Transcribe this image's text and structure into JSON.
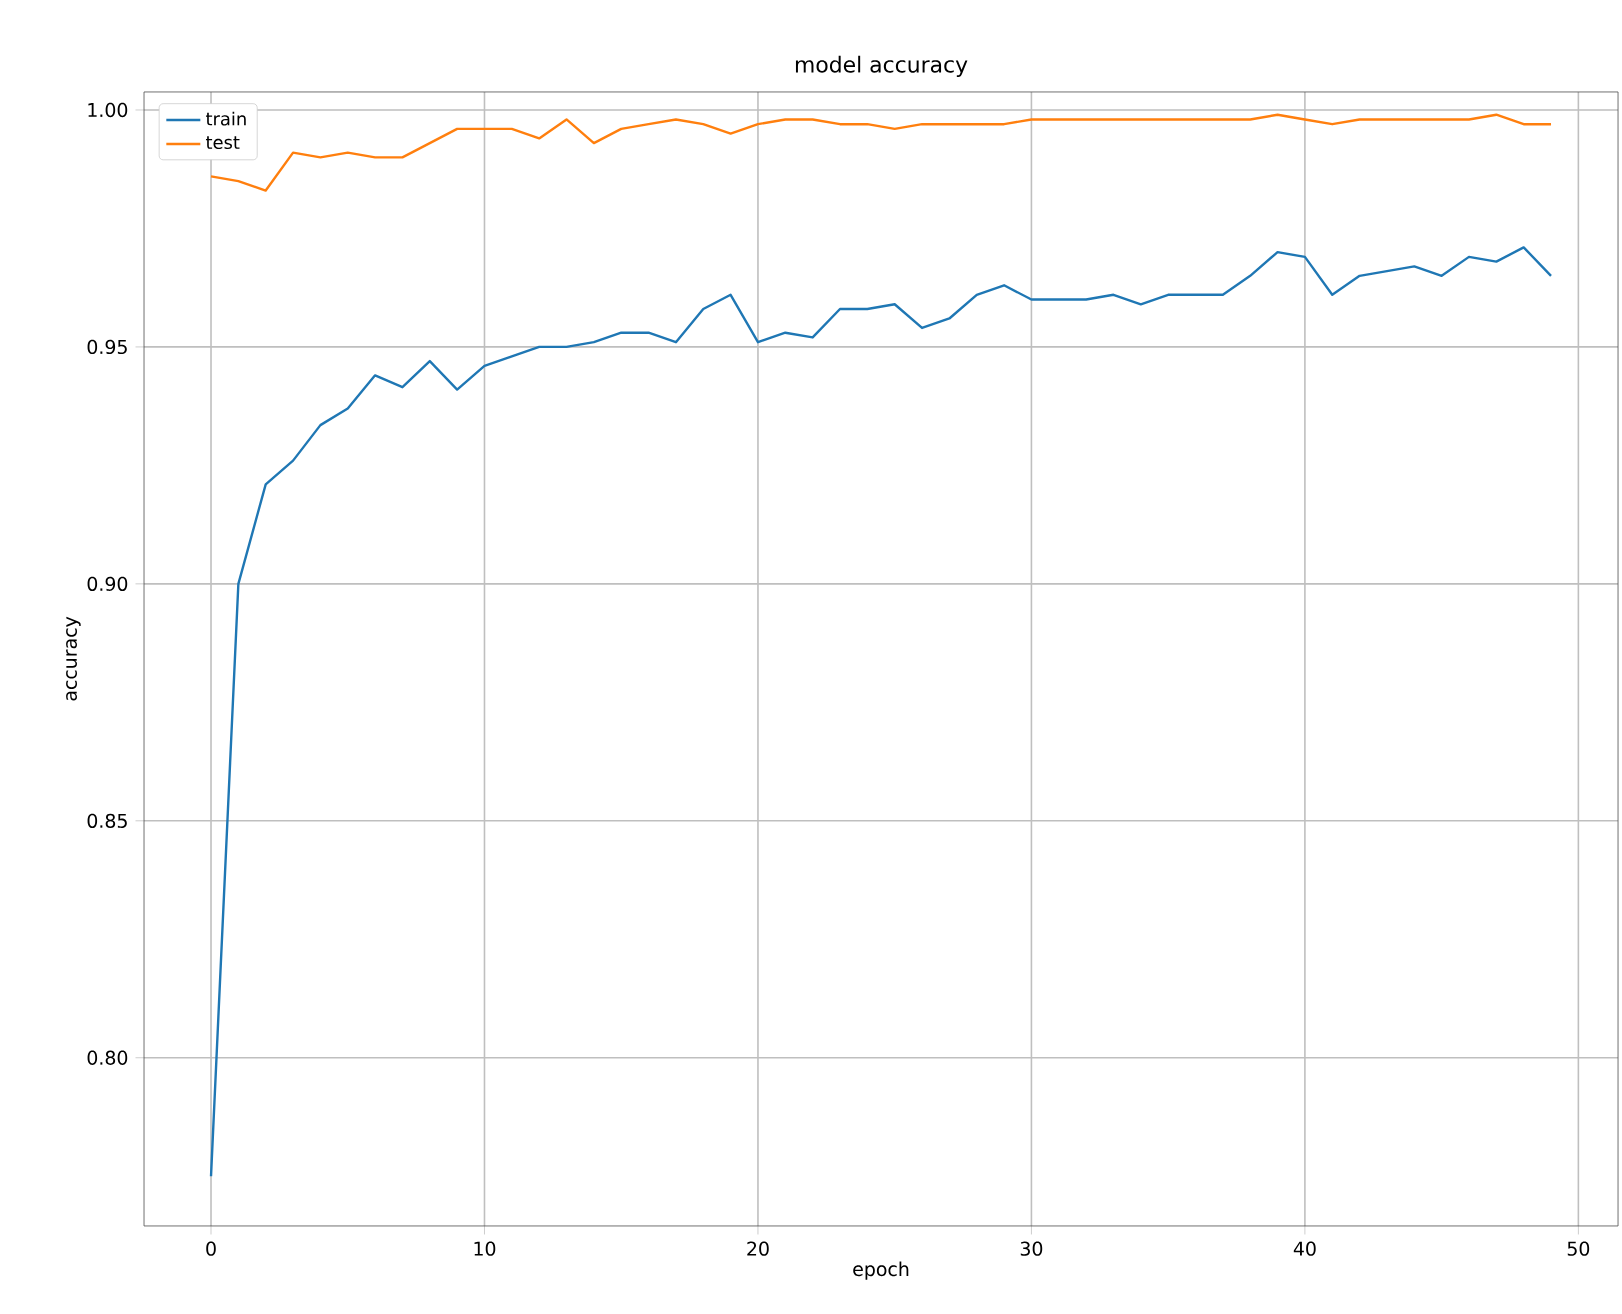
{
  "chart_data": {
    "type": "line",
    "title": "model accuracy",
    "xlabel": "epoch",
    "ylabel": "accuracy",
    "x": [
      0,
      1,
      2,
      3,
      4,
      5,
      6,
      7,
      8,
      9,
      10,
      11,
      12,
      13,
      14,
      15,
      16,
      17,
      18,
      19,
      20,
      21,
      22,
      23,
      24,
      25,
      26,
      27,
      28,
      29,
      30,
      31,
      32,
      33,
      34,
      35,
      36,
      37,
      38,
      39,
      40,
      41,
      42,
      43,
      44,
      45,
      46,
      47,
      48,
      49
    ],
    "series": [
      {
        "name": "train",
        "color": "#1f77b4",
        "values": [
          0.775,
          0.9,
          0.921,
          0.926,
          0.9335,
          0.937,
          0.944,
          0.9415,
          0.947,
          0.941,
          0.946,
          0.948,
          0.95,
          0.95,
          0.951,
          0.953,
          0.953,
          0.951,
          0.958,
          0.961,
          0.951,
          0.953,
          0.952,
          0.958,
          0.958,
          0.959,
          0.954,
          0.956,
          0.961,
          0.963,
          0.96,
          0.96,
          0.96,
          0.961,
          0.959,
          0.961,
          0.961,
          0.961,
          0.965,
          0.97,
          0.969,
          0.961,
          0.965,
          0.966,
          0.967,
          0.965,
          0.969,
          0.968,
          0.971,
          0.965
        ]
      },
      {
        "name": "test",
        "color": "#ff7f0e",
        "values": [
          0.986,
          0.985,
          0.983,
          0.991,
          0.99,
          0.991,
          0.99,
          0.99,
          0.993,
          0.996,
          0.996,
          0.996,
          0.994,
          0.998,
          0.993,
          0.996,
          0.997,
          0.998,
          0.997,
          0.995,
          0.997,
          0.998,
          0.998,
          0.997,
          0.997,
          0.996,
          0.997,
          0.997,
          0.997,
          0.997,
          0.998,
          0.998,
          0.998,
          0.998,
          0.998,
          0.998,
          0.998,
          0.998,
          0.998,
          0.999,
          0.998,
          0.997,
          0.998,
          0.998,
          0.998,
          0.998,
          0.998,
          0.999,
          0.997,
          0.997
        ]
      }
    ],
    "xlim": [
      -2.45,
      51.45
    ],
    "ylim": [
      0.7645,
      1.0038
    ],
    "xticks": [
      0,
      10,
      20,
      30,
      40,
      50
    ],
    "yticks": [
      {
        "value": 0.8,
        "label": "0.80"
      },
      {
        "value": 0.85,
        "label": "0.85"
      },
      {
        "value": 0.9,
        "label": "0.90"
      },
      {
        "value": 0.95,
        "label": "0.95"
      },
      {
        "value": 1.0,
        "label": "1.00"
      }
    ],
    "grid": true,
    "legend": "top left",
    "marker": "none",
    "line_style": "solid"
  }
}
